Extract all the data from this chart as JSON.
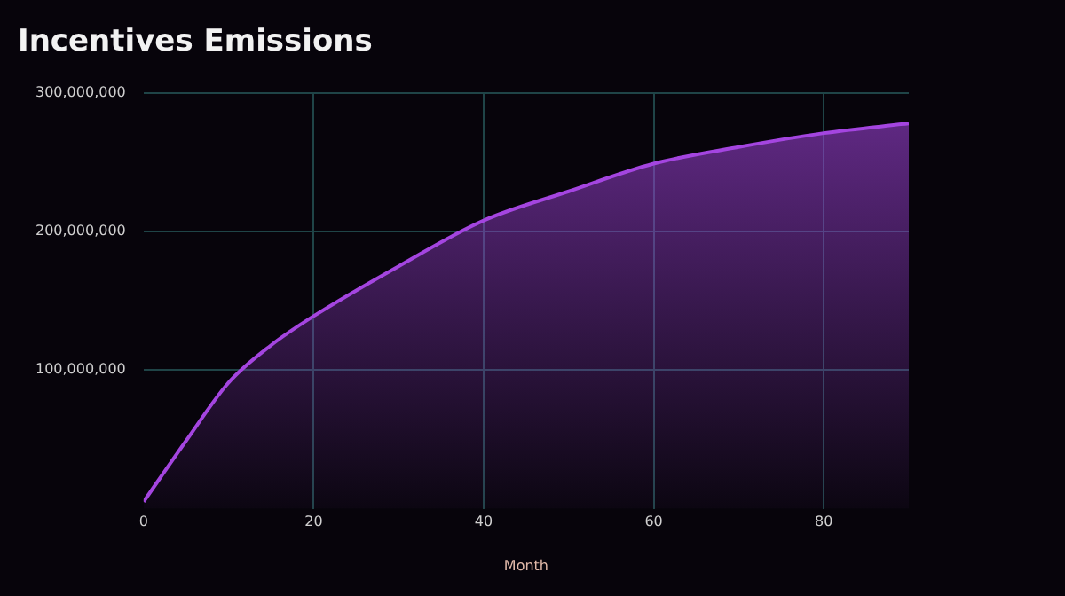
{
  "chart_data": {
    "type": "area",
    "title": "Incentives Emissions",
    "xlabel": "Month",
    "x": [
      0,
      5,
      10,
      15,
      20,
      30,
      40,
      50,
      60,
      70,
      80,
      90
    ],
    "series": [
      {
        "color": "#a445e0",
        "values": [
          5000000,
          49000000,
          91000000,
          118000000,
          139000000,
          175000000,
          208000000,
          229000000,
          249000000,
          261000000,
          271000000,
          278000000
        ]
      }
    ],
    "xlim": [
      0,
      90
    ],
    "xticks": [
      0,
      20,
      40,
      60,
      80
    ],
    "ylim": [
      0,
      300000000
    ],
    "yticks": [
      {
        "value": 100000000,
        "label": "100,000,000"
      },
      {
        "value": 200000000,
        "label": "200,000,000"
      },
      {
        "value": 300000000,
        "label": "300,000,000"
      }
    ],
    "grid": true,
    "legend": false
  }
}
